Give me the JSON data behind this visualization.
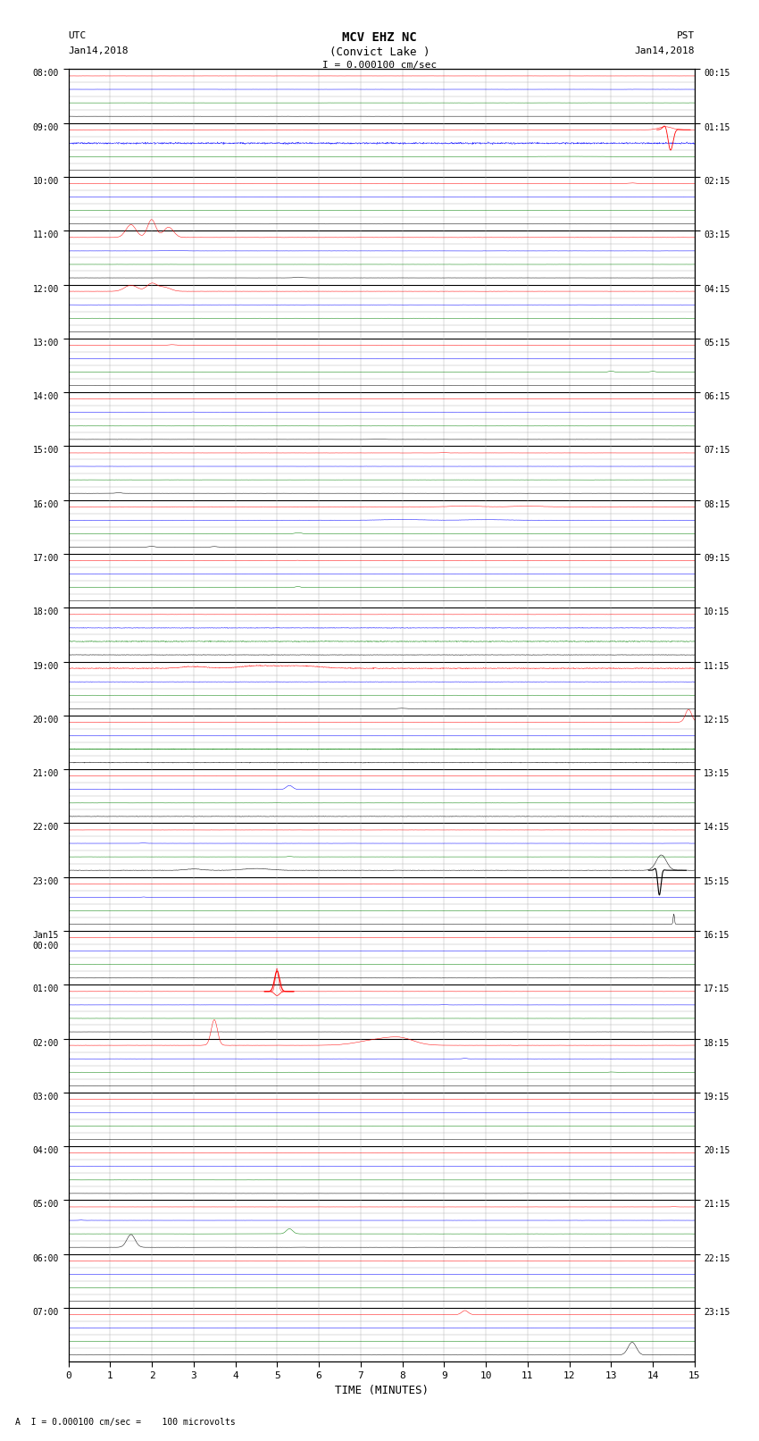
{
  "title_line1": "MCV EHZ NC",
  "title_line2": "(Convict Lake )",
  "title_scale": "I = 0.000100 cm/sec",
  "label_left_top": "UTC",
  "label_left_date": "Jan14,2018",
  "label_right_top": "PST",
  "label_right_date": "Jan14,2018",
  "xlabel": "TIME (MINUTES)",
  "footer": "A  I = 0.000100 cm/sec =    100 microvolts",
  "num_hour_rows": 24,
  "subtraces_per_hour": 4,
  "minutes_per_row": 15,
  "utc_labels": [
    "08:00",
    "09:00",
    "10:00",
    "11:00",
    "12:00",
    "13:00",
    "14:00",
    "15:00",
    "16:00",
    "17:00",
    "18:00",
    "19:00",
    "20:00",
    "21:00",
    "22:00",
    "23:00",
    "Jan15\n00:00",
    "01:00",
    "02:00",
    "03:00",
    "04:00",
    "05:00",
    "06:00",
    "07:00"
  ],
  "pst_labels": [
    "00:15",
    "01:15",
    "02:15",
    "03:15",
    "04:15",
    "05:15",
    "06:15",
    "07:15",
    "08:15",
    "09:15",
    "10:15",
    "11:15",
    "12:15",
    "13:15",
    "14:15",
    "15:15",
    "16:15",
    "17:15",
    "18:15",
    "19:15",
    "20:15",
    "21:15",
    "22:15",
    "23:15"
  ],
  "background_color": "#ffffff",
  "grid_major_color": "#000000",
  "grid_minor_color": "#aaaaaa",
  "fig_width": 8.5,
  "fig_height": 16.13,
  "colors_cycle": [
    "red",
    "blue",
    "green",
    "black"
  ]
}
